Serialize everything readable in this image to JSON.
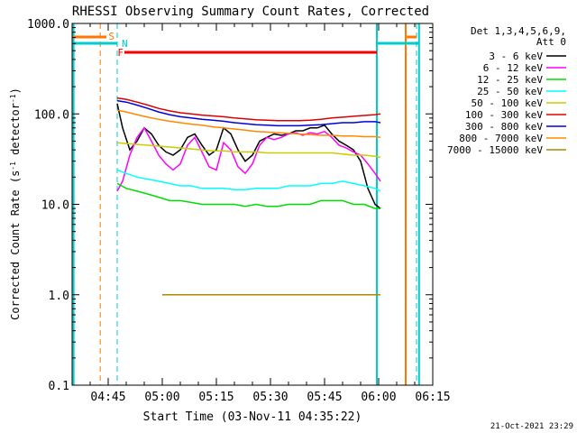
{
  "chart_data": {
    "type": "line",
    "title": "RHESSI Observing Summary Count Rates, Corrected",
    "xlabel": "Start Time (03-Nov-11 04:35:22)",
    "ylabel_pre": "Corrected Count Rate (s",
    "ylabel_sup1": "-1",
    "ylabel_mid": " detector",
    "ylabel_sup2": "-1",
    "ylabel_post": ")",
    "yscale": "log",
    "ylim": [
      0.1,
      1000
    ],
    "xlim_min": [
      0,
      100
    ],
    "x_ticks": [
      {
        "min": 10,
        "label": "04:45"
      },
      {
        "min": 25,
        "label": "05:00"
      },
      {
        "min": 40,
        "label": "05:15"
      },
      {
        "min": 55,
        "label": "05:30"
      },
      {
        "min": 70,
        "label": "05:45"
      },
      {
        "min": 85,
        "label": "06:00"
      },
      {
        "min": 100,
        "label": "06:15"
      }
    ],
    "y_ticks": [
      {
        "v": 1000,
        "label": "1000.0"
      },
      {
        "v": 100,
        "label": "100.0"
      },
      {
        "v": 10,
        "label": "10.0"
      },
      {
        "v": 1,
        "label": "1.0"
      },
      {
        "v": 0.1,
        "label": "0.1"
      }
    ],
    "legend_header": [
      "Det 1,3,4,5,6,9,",
      "Att 0"
    ],
    "series": [
      {
        "name": "3 - 6 keV",
        "color": "#000000",
        "x": [
          12.5,
          14,
          16,
          18,
          20,
          22,
          24,
          26,
          28,
          30,
          32,
          34,
          36,
          38,
          40,
          42,
          44,
          46,
          48,
          50,
          52,
          54,
          56,
          58,
          60,
          62,
          64,
          66,
          68,
          70,
          72,
          74,
          76,
          78,
          80,
          82,
          84,
          85.5
        ],
        "y": [
          130,
          70,
          40,
          50,
          70,
          60,
          45,
          38,
          35,
          40,
          55,
          60,
          45,
          35,
          40,
          70,
          60,
          40,
          30,
          35,
          50,
          55,
          60,
          58,
          60,
          65,
          65,
          70,
          70,
          75,
          60,
          50,
          45,
          40,
          30,
          15,
          10,
          9
        ]
      },
      {
        "name": "6 - 12 keV",
        "color": "#ff00ff",
        "x": [
          12.5,
          14,
          16,
          18,
          20,
          22,
          24,
          26,
          28,
          30,
          32,
          34,
          36,
          38,
          40,
          42,
          44,
          46,
          48,
          50,
          52,
          54,
          56,
          58,
          60,
          62,
          64,
          66,
          68,
          70,
          72,
          74,
          76,
          78,
          80,
          82,
          84,
          85.5
        ],
        "y": [
          14,
          18,
          35,
          55,
          70,
          50,
          35,
          28,
          24,
          28,
          45,
          55,
          38,
          26,
          24,
          48,
          40,
          26,
          22,
          28,
          45,
          55,
          52,
          55,
          60,
          62,
          58,
          62,
          60,
          64,
          55,
          45,
          42,
          38,
          35,
          28,
          22,
          18
        ]
      },
      {
        "name": "12 - 25 keV",
        "color": "#00dd00",
        "x": [
          12.5,
          15,
          18,
          21,
          24,
          27,
          30,
          33,
          36,
          39,
          42,
          45,
          48,
          51,
          54,
          57,
          60,
          63,
          66,
          69,
          72,
          75,
          78,
          81,
          84,
          85.5
        ],
        "y": [
          17,
          15,
          14,
          13,
          12,
          11,
          11,
          10.5,
          10,
          10,
          10,
          10,
          9.5,
          10,
          9.5,
          9.5,
          10,
          10,
          10,
          11,
          11,
          11,
          10,
          10,
          9,
          9
        ]
      },
      {
        "name": "25 - 50 keV",
        "color": "#00ffff",
        "x": [
          12.5,
          15,
          18,
          21,
          24,
          27,
          30,
          33,
          36,
          39,
          42,
          45,
          48,
          51,
          54,
          57,
          60,
          63,
          66,
          69,
          72,
          75,
          78,
          81,
          84,
          85.5
        ],
        "y": [
          24,
          22,
          20,
          19,
          18,
          17,
          16,
          16,
          15,
          15,
          15,
          14.5,
          14.5,
          15,
          15,
          15,
          16,
          16,
          16,
          17,
          17,
          18,
          17,
          16,
          15,
          14
        ]
      },
      {
        "name": "50 - 100 keV",
        "color": "#cccc00",
        "x": [
          12.5,
          15,
          18,
          21,
          24,
          27,
          30,
          33,
          36,
          39,
          42,
          45,
          48,
          51,
          54,
          57,
          60,
          63,
          66,
          69,
          72,
          75,
          78,
          81,
          84,
          85.5
        ],
        "y": [
          48,
          47,
          46,
          45,
          44,
          43,
          42,
          41,
          40,
          39,
          39,
          38,
          38,
          38,
          37,
          37,
          37,
          37,
          37,
          37,
          37,
          36,
          35,
          35,
          34,
          33
        ]
      },
      {
        "name": "100 - 300 keV",
        "color": "#dd0000",
        "x": [
          12.5,
          15,
          18,
          21,
          24,
          27,
          30,
          33,
          36,
          39,
          42,
          45,
          48,
          51,
          54,
          57,
          60,
          63,
          66,
          69,
          72,
          75,
          78,
          81,
          84,
          85.5
        ],
        "y": [
          150,
          145,
          135,
          125,
          115,
          108,
          103,
          100,
          97,
          95,
          93,
          90,
          88,
          86,
          85,
          84,
          84,
          84,
          85,
          87,
          90,
          92,
          94,
          96,
          98,
          100
        ]
      },
      {
        "name": "300 - 800 keV",
        "color": "#0000dd",
        "x": [
          12.5,
          15,
          18,
          21,
          24,
          27,
          30,
          33,
          36,
          39,
          42,
          45,
          48,
          51,
          54,
          57,
          60,
          63,
          66,
          69,
          72,
          75,
          78,
          81,
          84,
          85.5
        ],
        "y": [
          140,
          135,
          125,
          115,
          105,
          98,
          93,
          90,
          87,
          85,
          83,
          80,
          78,
          76,
          75,
          74,
          74,
          74,
          75,
          76,
          78,
          80,
          80,
          82,
          82,
          80
        ]
      },
      {
        "name": "800 - 7000 keV",
        "color": "#ff8800",
        "x": [
          12.5,
          15,
          18,
          21,
          24,
          27,
          30,
          33,
          36,
          39,
          42,
          45,
          48,
          51,
          54,
          57,
          60,
          63,
          66,
          69,
          72,
          75,
          78,
          81,
          84,
          85.5
        ],
        "y": [
          110,
          105,
          98,
          92,
          87,
          83,
          80,
          77,
          75,
          72,
          70,
          68,
          66,
          64,
          63,
          62,
          61,
          60,
          59,
          58,
          58,
          57,
          57,
          56,
          56,
          55
        ]
      },
      {
        "name": "7000 - 15000 keV",
        "color": "#aa8800",
        "x": [
          25,
          31,
          34,
          40,
          43,
          48,
          53,
          55,
          57,
          68,
          70,
          72,
          76,
          79,
          80,
          81,
          82,
          83,
          84,
          85.5
        ],
        "y": [
          1,
          1,
          1,
          1,
          1,
          1,
          1,
          1,
          1,
          1,
          1,
          1,
          1,
          1,
          1,
          1,
          1,
          1,
          1,
          1
        ]
      }
    ],
    "markers": [
      {
        "label": "S",
        "color": "#ff7700"
      },
      {
        "label": "N",
        "color": "#00cccc"
      },
      {
        "label": "F",
        "color": "#ff0000"
      }
    ],
    "footer": "21-Oct-2021 23:29"
  }
}
